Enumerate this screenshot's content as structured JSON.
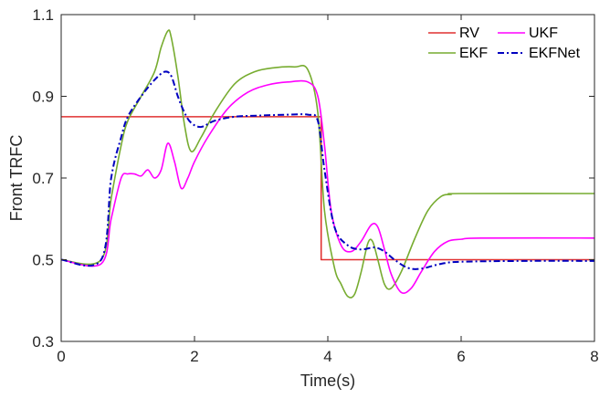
{
  "chart_data": {
    "type": "line",
    "xlabel": "Time(s)",
    "ylabel": "Front TRFC",
    "xlim": [
      0,
      8
    ],
    "ylim": [
      0.3,
      1.1
    ],
    "xticks": [
      0,
      2,
      4,
      6,
      8
    ],
    "yticks": [
      0.3,
      0.5,
      0.7,
      0.9,
      1.1
    ],
    "ytick_labels": [
      "0.3",
      "0.5",
      "0.7",
      "0.9",
      "1.1"
    ],
    "grid": false,
    "legend_position": "top-right",
    "series": [
      {
        "name": "RV",
        "color": "#e03030",
        "dash": "solid",
        "x": [
          0,
          3.9,
          3.9,
          8
        ],
        "y": [
          0.85,
          0.85,
          0.5,
          0.5
        ]
      },
      {
        "name": "UKF",
        "color": "#ff00ff",
        "dash": "solid",
        "x": [
          0,
          0.6,
          0.75,
          0.9,
          1.0,
          1.1,
          1.2,
          1.3,
          1.4,
          1.5,
          1.6,
          1.7,
          1.8,
          1.9,
          2.0,
          2.2,
          2.5,
          2.8,
          3.1,
          3.4,
          3.7,
          3.85,
          3.95,
          4.05,
          4.2,
          4.35,
          4.5,
          4.65,
          4.75,
          4.85,
          4.95,
          5.1,
          5.25,
          5.4,
          5.6,
          5.8,
          6.0,
          6.3,
          8.0
        ],
        "y": [
          0.5,
          0.49,
          0.6,
          0.7,
          0.71,
          0.71,
          0.705,
          0.72,
          0.7,
          0.72,
          0.785,
          0.74,
          0.675,
          0.7,
          0.74,
          0.8,
          0.87,
          0.91,
          0.928,
          0.935,
          0.935,
          0.9,
          0.78,
          0.62,
          0.535,
          0.52,
          0.545,
          0.585,
          0.58,
          0.525,
          0.465,
          0.42,
          0.43,
          0.47,
          0.52,
          0.545,
          0.55,
          0.553,
          0.553
        ]
      },
      {
        "name": "EKF",
        "color": "#77ac30",
        "dash": "solid",
        "x": [
          0,
          0.6,
          0.75,
          0.9,
          1.0,
          1.2,
          1.4,
          1.5,
          1.6,
          1.65,
          1.75,
          1.85,
          1.95,
          2.1,
          2.3,
          2.6,
          2.9,
          3.2,
          3.5,
          3.7,
          3.85,
          3.95,
          4.1,
          4.2,
          4.3,
          4.4,
          4.5,
          4.6,
          4.67,
          4.75,
          4.85,
          4.95,
          5.1,
          5.3,
          5.5,
          5.7,
          5.85,
          6.0,
          8.0
        ],
        "y": [
          0.5,
          0.5,
          0.65,
          0.78,
          0.84,
          0.9,
          0.96,
          1.02,
          1.06,
          1.045,
          0.95,
          0.83,
          0.765,
          0.8,
          0.86,
          0.93,
          0.96,
          0.97,
          0.972,
          0.965,
          0.86,
          0.62,
          0.48,
          0.44,
          0.41,
          0.415,
          0.47,
          0.54,
          0.545,
          0.5,
          0.44,
          0.43,
          0.47,
          0.55,
          0.62,
          0.655,
          0.66,
          0.662,
          0.662
        ]
      },
      {
        "name": "EKFNet",
        "color": "#0000c0",
        "dash": "dashdot",
        "x": [
          0,
          0.6,
          0.75,
          0.9,
          1.0,
          1.2,
          1.4,
          1.55,
          1.65,
          1.75,
          1.85,
          1.95,
          2.1,
          2.3,
          2.6,
          3.0,
          3.4,
          3.7,
          3.85,
          3.95,
          4.1,
          4.3,
          4.5,
          4.7,
          4.85,
          5.0,
          5.2,
          5.4,
          5.7,
          6.0,
          7.0,
          8.0
        ],
        "y": [
          0.5,
          0.5,
          0.7,
          0.8,
          0.85,
          0.9,
          0.94,
          0.96,
          0.95,
          0.9,
          0.86,
          0.835,
          0.825,
          0.84,
          0.85,
          0.853,
          0.855,
          0.855,
          0.84,
          0.72,
          0.58,
          0.535,
          0.525,
          0.53,
          0.52,
          0.5,
          0.48,
          0.478,
          0.49,
          0.495,
          0.497,
          0.497
        ]
      }
    ]
  }
}
